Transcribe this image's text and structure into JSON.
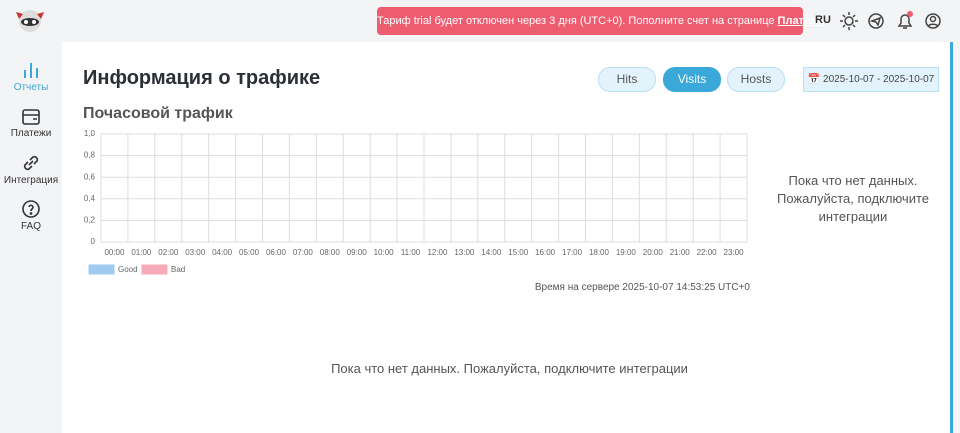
{
  "banner": {
    "text": "Тариф trial будет отключен через 3 дня (UTC+0). Пополните счет на странице ",
    "link": "Платежи"
  },
  "header": {
    "language": "RU"
  },
  "sidebar": {
    "items": [
      "Отчеты",
      "Платежи",
      "Интеграция",
      "FAQ"
    ]
  },
  "page": {
    "title": "Информация о трафике",
    "tabs": [
      "Hits",
      "Visits",
      "Hosts"
    ],
    "date_range": "2025-10-07 - 2025-10-07",
    "server_time": "Время на сервере 2025-10-07 14:53:25 UTC+0",
    "side_note": [
      "Пока что нет данных.",
      "Пожалуйста, подключите",
      "интеграции"
    ],
    "bottom_note": "Пока что нет данных. Пожалуйста, подключите интеграции"
  },
  "chart_data": {
    "type": "bar",
    "title": "Почасовой трафик",
    "categories": [
      "00:00",
      "01:00",
      "02:00",
      "03:00",
      "04:00",
      "05:00",
      "06:00",
      "07:00",
      "08:00",
      "09:00",
      "10:00",
      "11:00",
      "12:00",
      "13:00",
      "14:00",
      "15:00",
      "16:00",
      "17:00",
      "18:00",
      "19:00",
      "20:00",
      "21:00",
      "22:00",
      "23:00"
    ],
    "series": [
      {
        "name": "Good",
        "color": "#9ecbef",
        "values": [
          null,
          null,
          null,
          null,
          null,
          null,
          null,
          null,
          null,
          null,
          null,
          null,
          null,
          null,
          null,
          null,
          null,
          null,
          null,
          null,
          null,
          null,
          null,
          null
        ]
      },
      {
        "name": "Bad",
        "color": "#f7aab8",
        "values": [
          null,
          null,
          null,
          null,
          null,
          null,
          null,
          null,
          null,
          null,
          null,
          null,
          null,
          null,
          null,
          null,
          null,
          null,
          null,
          null,
          null,
          null,
          null,
          null
        ]
      }
    ],
    "ylim": [
      0,
      1
    ],
    "yticks": [
      0,
      {
        "value": 0.2,
        "label": "0,2"
      },
      {
        "value": 0.4,
        "label": "0,4"
      },
      {
        "value": 0.6,
        "label": "0,6"
      },
      {
        "value": 0.8,
        "label": "0,8"
      },
      {
        "value": 1,
        "label": "1,0"
      }
    ],
    "grid": true
  }
}
